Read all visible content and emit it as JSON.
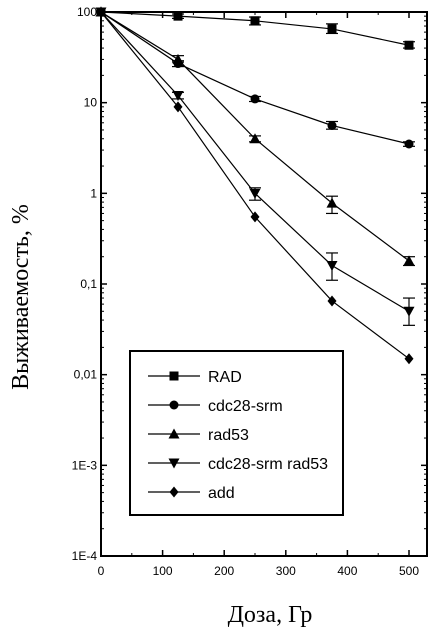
{
  "chart_data": {
    "type": "line",
    "title": "",
    "xlabel": "Доза, Гр",
    "ylabel": "Выживаемость, %",
    "x_scale": "linear",
    "y_scale": "log",
    "xlim": [
      0,
      520
    ],
    "ylim": [
      0.0001,
      100
    ],
    "x_ticks": [
      0,
      100,
      200,
      300,
      400,
      500
    ],
    "x_tick_labels": [
      "0",
      "100",
      "200",
      "300",
      "400",
      "500"
    ],
    "y_ticks": [
      100,
      10,
      1,
      0.1,
      0.01,
      0.001,
      0.0001
    ],
    "y_tick_labels": [
      "100",
      "10",
      "1",
      "0,1",
      "0,01",
      "1E-3",
      "1E-4"
    ],
    "grid": false,
    "legend_position": "lower-left",
    "series": [
      {
        "name": "RAD",
        "marker": "square",
        "x": [
          0,
          125,
          250,
          375,
          500
        ],
        "y": [
          100,
          90,
          80,
          65,
          43
        ],
        "err_low": [
          100,
          85,
          72,
          58,
          40
        ],
        "err_high": [
          100,
          95,
          88,
          74,
          47
        ]
      },
      {
        "name": "cdc28-srm",
        "marker": "circle",
        "x": [
          0,
          125,
          250,
          375,
          500
        ],
        "y": [
          100,
          27,
          11,
          5.6,
          3.5
        ],
        "err_low": [
          100,
          25,
          10.3,
          5.1,
          3.3
        ],
        "err_high": [
          100,
          29,
          11.7,
          6.2,
          3.7
        ]
      },
      {
        "name": "rad53",
        "marker": "triangle-up",
        "x": [
          0,
          125,
          250,
          375,
          500
        ],
        "y": [
          100,
          30,
          4.0,
          0.78,
          0.18
        ],
        "err_low": [
          100,
          28,
          3.7,
          0.6,
          0.16
        ],
        "err_high": [
          100,
          33,
          4.3,
          0.93,
          0.2
        ]
      },
      {
        "name": "cdc28-srm rad53",
        "marker": "triangle-down",
        "x": [
          0,
          125,
          250,
          375,
          500
        ],
        "y": [
          100,
          12,
          1.0,
          0.16,
          0.05
        ],
        "err_low": [
          100,
          11,
          0.84,
          0.11,
          0.035
        ],
        "err_high": [
          100,
          13,
          1.15,
          0.22,
          0.07
        ]
      },
      {
        "name": "add",
        "marker": "diamond",
        "x": [
          0,
          125,
          250,
          375,
          500
        ],
        "y": [
          100,
          9,
          0.55,
          0.065,
          0.015
        ],
        "err_low": [
          100,
          9,
          0.55,
          0.065,
          0.015
        ],
        "err_high": [
          100,
          9,
          0.55,
          0.065,
          0.015
        ]
      }
    ]
  }
}
